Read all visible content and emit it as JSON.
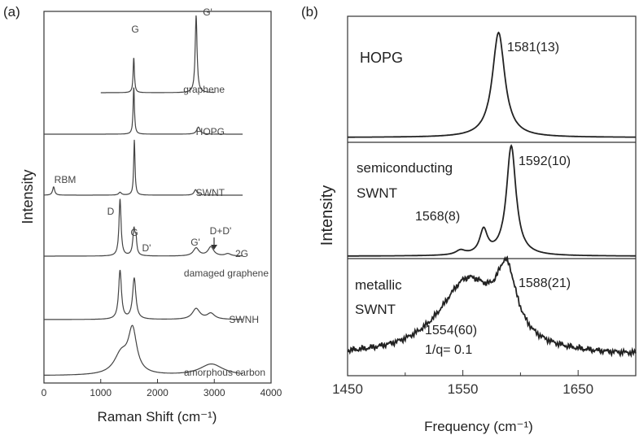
{
  "chart_data": [
    {
      "panel_label": "(a)",
      "type": "line",
      "xlabel": "Raman Shift (cm⁻¹)",
      "ylabel": "Intensity",
      "x_ticks": [
        "0",
        "1000",
        "2000",
        "3000",
        "4000"
      ],
      "xlim": [
        0,
        4000
      ],
      "series": [
        {
          "name": "graphene",
          "x_range": [
            1000,
            3000
          ],
          "peaks": [
            {
              "pos": 1582,
              "height": 0.43,
              "width": 14,
              "label": "G"
            },
            {
              "pos": 2680,
              "height": 0.95,
              "width": 20,
              "label": "G'"
            }
          ]
        },
        {
          "name": "HOPG",
          "x_range": [
            0,
            3500
          ],
          "peaks": [
            {
              "pos": 1582,
              "height": 1.0,
              "width": 14
            },
            {
              "pos": 2720,
              "height": 0.15,
              "width": 35
            }
          ]
        },
        {
          "name": "SWNT",
          "x_range": [
            0,
            3500
          ],
          "peaks": [
            {
              "pos": 170,
              "height": 0.15,
              "width": 22,
              "label": "RBM"
            },
            {
              "pos": 1340,
              "height": 0.05,
              "width": 30
            },
            {
              "pos": 1592,
              "height": 1.0,
              "width": 14
            },
            {
              "pos": 2670,
              "height": 0.1,
              "width": 30
            }
          ]
        },
        {
          "name": "damaged graphene",
          "x_range": [
            0,
            3500
          ],
          "peaks": [
            {
              "pos": 1340,
              "height": 1.0,
              "width": 22,
              "label": "D"
            },
            {
              "pos": 1585,
              "height": 0.45,
              "width": 24,
              "label": "G"
            },
            {
              "pos": 1620,
              "height": 0.25,
              "width": 18,
              "label": "D'"
            },
            {
              "pos": 2680,
              "height": 0.14,
              "width": 60,
              "label": "G'"
            },
            {
              "pos": 2940,
              "height": 0.16,
              "width": 60,
              "label": "D+D'"
            },
            {
              "pos": 3240,
              "height": 0.04,
              "width": 60,
              "label": "2G"
            }
          ]
        },
        {
          "name": "SWNH",
          "x_range": [
            0,
            3500
          ],
          "peaks": [
            {
              "pos": 1340,
              "height": 1.0,
              "width": 30
            },
            {
              "pos": 1590,
              "height": 0.84,
              "width": 35
            },
            {
              "pos": 2680,
              "height": 0.22,
              "width": 80
            },
            {
              "pos": 2940,
              "height": 0.12,
              "width": 80
            }
          ]
        },
        {
          "name": "amorphous carbon",
          "x_range": [
            0,
            3500
          ],
          "peaks": [
            {
              "pos": 1360,
              "height": 0.35,
              "width": 150
            },
            {
              "pos": 1560,
              "height": 0.75,
              "width": 90
            },
            {
              "pos": 2950,
              "height": 0.2,
              "width": 250
            }
          ]
        }
      ]
    },
    {
      "panel_label": "(b)",
      "type": "line",
      "xlabel": "Frequency (cm⁻¹)",
      "ylabel": "Intensity",
      "x_ticks": [
        "1450",
        "1550",
        "1650"
      ],
      "xlim": [
        1450,
        1700
      ],
      "series": [
        {
          "name": "HOPG",
          "peaks": [
            {
              "pos": 1581,
              "fwhm": 13,
              "height": 1.0,
              "label": "1581(13)"
            }
          ]
        },
        {
          "name": "semiconducting SWNT",
          "peaks": [
            {
              "pos": 1592,
              "fwhm": 10,
              "height": 1.0,
              "label": "1592(10)"
            },
            {
              "pos": 1568,
              "fwhm": 8,
              "height": 0.22,
              "label": "1568(8)"
            },
            {
              "pos": 1548,
              "fwhm": 10,
              "height": 0.04
            }
          ]
        },
        {
          "name": "metallic SWNT",
          "peaks": [
            {
              "pos": 1588,
              "fwhm": 21,
              "height": 0.72,
              "label": "1588(21)"
            },
            {
              "pos": 1554,
              "fwhm": 60,
              "height": 0.82,
              "label": "1554(60)",
              "note": "1/q= 0.1"
            }
          ]
        }
      ]
    }
  ],
  "panel_a": {
    "label": "(a)",
    "ylabel": "Intensity",
    "xlabel": "Raman Shift (cm⁻¹)",
    "curve_labels": [
      "graphene",
      "HOPG",
      "SWNT",
      "damaged graphene",
      "SWNH",
      "amorphous carbon"
    ],
    "peak_labels": {
      "g_top": "G",
      "gp_top": "G'",
      "rbm": "RBM",
      "d": "D",
      "g_dmg": "G",
      "dp": "D'",
      "gp_dmg": "G'",
      "dd": "D+D'",
      "twog": "2G"
    }
  },
  "panel_b": {
    "label": "(b)",
    "ylabel": "Intensity",
    "xlabel": "Frequency (cm⁻¹)",
    "name_hopg": "HOPG",
    "name_semi_1": "semiconducting",
    "name_semi_2": "SWNT",
    "name_met_1": "metallic",
    "name_met_2": "SWNT",
    "ann_1581": "1581(13)",
    "ann_1592": "1592(10)",
    "ann_1568": "1568(8)",
    "ann_1588": "1588(21)",
    "ann_1554": "1554(60)",
    "ann_q": "1/q= 0.1"
  }
}
